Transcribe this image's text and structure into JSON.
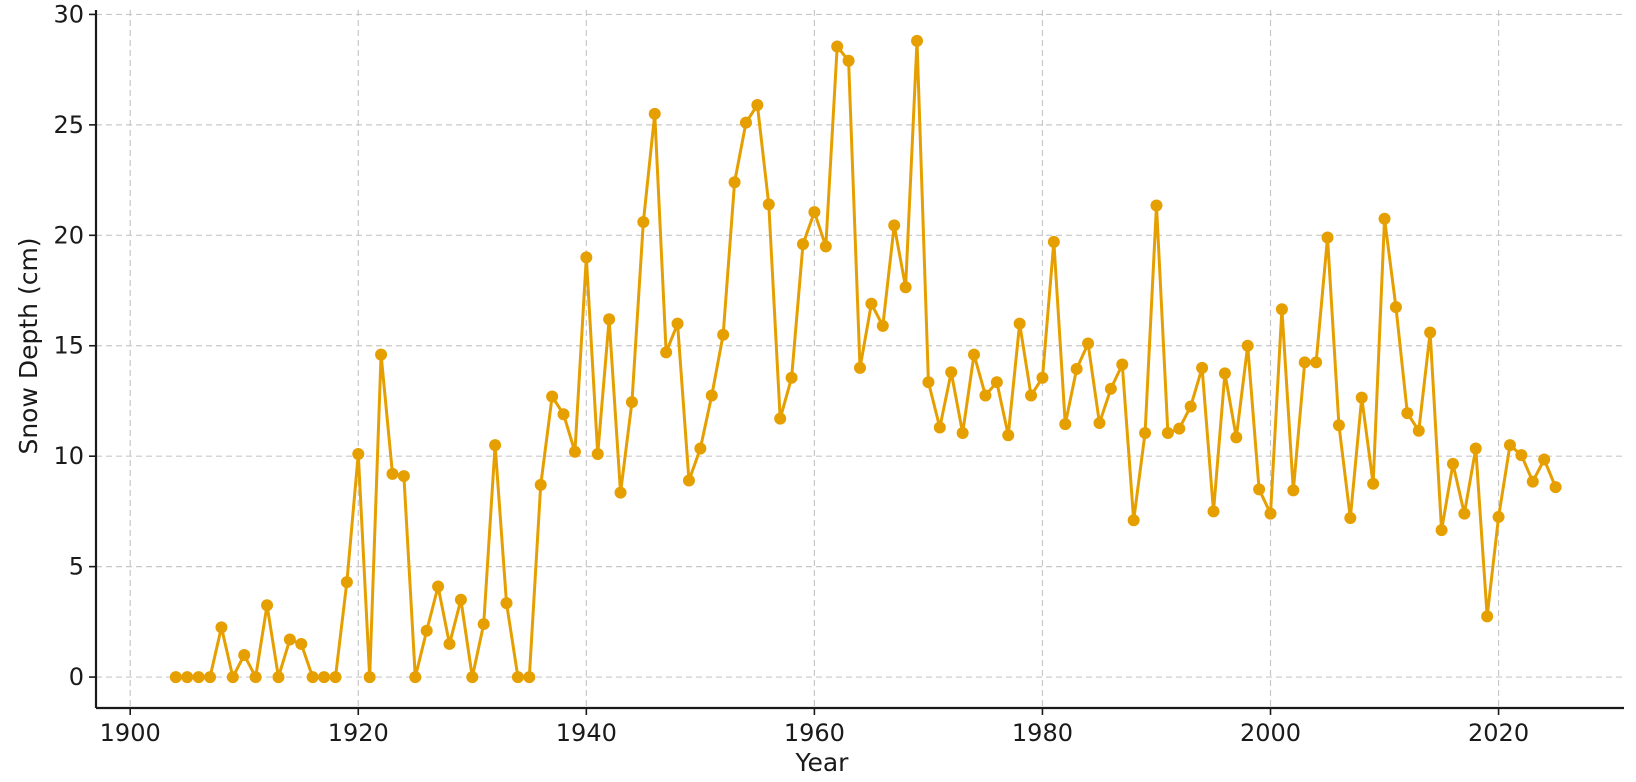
{
  "chart_data": {
    "type": "line",
    "title": "",
    "xlabel": "Year",
    "ylabel": "Snow Depth (cm)",
    "xlim": [
      1897,
      2031
    ],
    "ylim": [
      -1.4,
      30.2
    ],
    "xticks": [
      1900,
      1920,
      1940,
      1960,
      1980,
      2000,
      2020
    ],
    "yticks": [
      0,
      5,
      10,
      15,
      20,
      25,
      30
    ],
    "grid": true,
    "legend": "none",
    "color": "#E69F00",
    "markers": true,
    "x": [
      1904,
      1905,
      1906,
      1907,
      1908,
      1909,
      1910,
      1911,
      1912,
      1913,
      1914,
      1915,
      1916,
      1917,
      1918,
      1919,
      1920,
      1921,
      1922,
      1923,
      1924,
      1925,
      1926,
      1927,
      1928,
      1929,
      1930,
      1931,
      1932,
      1933,
      1934,
      1935,
      1936,
      1937,
      1938,
      1939,
      1940,
      1941,
      1942,
      1943,
      1944,
      1945,
      1946,
      1947,
      1948,
      1949,
      1950,
      1951,
      1952,
      1953,
      1954,
      1955,
      1956,
      1957,
      1958,
      1959,
      1960,
      1961,
      1962,
      1963,
      1964,
      1965,
      1966,
      1967,
      1968,
      1969,
      1970,
      1971,
      1972,
      1973,
      1974,
      1975,
      1976,
      1977,
      1978,
      1979,
      1980,
      1981,
      1982,
      1983,
      1984,
      1985,
      1986,
      1987,
      1988,
      1989,
      1990,
      1991,
      1992,
      1993,
      1994,
      1995,
      1996,
      1997,
      1998,
      1999,
      2000,
      2001,
      2002,
      2003,
      2004,
      2005,
      2006,
      2007,
      2008,
      2009,
      2010,
      2011,
      2012,
      2013,
      2014,
      2015,
      2016,
      2017,
      2018,
      2019,
      2020,
      2021,
      2022,
      2023,
      2024,
      2025
    ],
    "series": [
      {
        "values": [
          0,
          0,
          0,
          0,
          2.25,
          0,
          1,
          0,
          3.25,
          0,
          1.7,
          1.5,
          0,
          0,
          0,
          4.3,
          10.1,
          0,
          14.6,
          9.2,
          9.1,
          0,
          2.1,
          4.1,
          1.5,
          3.5,
          0,
          2.4,
          10.5,
          3.35,
          0,
          0,
          8.7,
          12.7,
          11.9,
          10.2,
          19,
          10.1,
          16.2,
          8.35,
          12.45,
          20.6,
          25.5,
          14.7,
          16,
          8.9,
          10.35,
          12.75,
          15.5,
          22.4,
          25.1,
          25.9,
          21.4,
          11.7,
          13.55,
          19.6,
          21.05,
          19.5,
          28.55,
          27.9,
          14,
          16.9,
          15.9,
          20.45,
          17.65,
          28.8,
          13.35,
          11.3,
          13.8,
          11.05,
          14.6,
          12.75,
          13.35,
          10.95,
          16,
          12.75,
          13.55,
          19.7,
          11.45,
          13.95,
          15.1,
          11.5,
          13.05,
          14.15,
          7.1,
          11.05,
          21.35,
          11.05,
          11.25,
          12.25,
          14,
          7.5,
          13.75,
          10.85,
          15,
          8.5,
          7.4,
          16.65,
          8.45,
          14.25,
          14.25,
          19.9,
          11.4,
          7.2,
          12.65,
          8.75,
          20.75,
          16.75,
          11.95,
          11.15,
          15.6,
          6.65,
          9.65,
          7.4,
          10.35,
          2.75,
          7.25,
          10.5,
          10.05,
          8.85,
          9.85,
          8.6
        ]
      }
    ]
  }
}
